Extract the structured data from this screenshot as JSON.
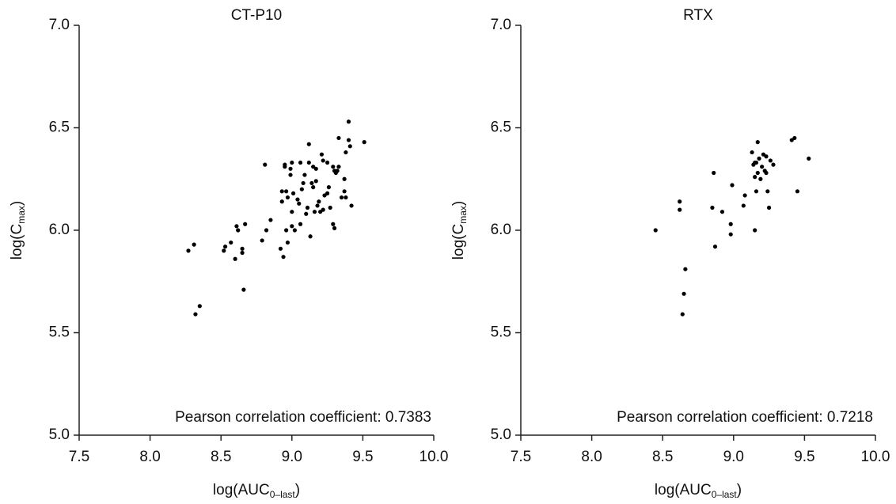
{
  "chart_data": [
    {
      "type": "scatter",
      "title": "CT-P10",
      "xlabel": [
        "log(AUC",
        "0–last",
        ")"
      ],
      "ylabel": [
        "log(C",
        "max",
        ")"
      ],
      "annotation": "Pearson correlation coefficient: 0.7383",
      "color": "#000000",
      "xlim": [
        7.5,
        10
      ],
      "ylim": [
        5,
        7
      ],
      "xticks": [
        7.5,
        {
          "value": 8,
          "label": "8.0"
        },
        8.5,
        {
          "value": 9,
          "label": "9.0"
        },
        9.5,
        {
          "value": 10,
          "label": "10.0"
        }
      ],
      "yticks": [
        {
          "value": 5,
          "label": "5.0"
        },
        5.5,
        {
          "value": 6,
          "label": "6.0"
        },
        6.5,
        {
          "value": 7,
          "label": "7.0"
        }
      ],
      "x": [
        8.27,
        8.31,
        8.32,
        8.35,
        8.52,
        8.53,
        8.57,
        8.6,
        8.61,
        8.62,
        8.65,
        8.65,
        8.66,
        8.67,
        8.81,
        8.79,
        8.82,
        8.85,
        8.92,
        8.93,
        8.93,
        8.94,
        8.95,
        8.95,
        8.96,
        8.96,
        8.97,
        8.97,
        8.99,
        9.0,
        8.99,
        9.0,
        9.01,
        9.02,
        9.0,
        9.04,
        9.05,
        9.06,
        9.07,
        9.06,
        9.09,
        9.1,
        9.12,
        9.12,
        9.13,
        9.14,
        9.15,
        9.15,
        9.16,
        9.17,
        9.18,
        9.19,
        9.2,
        9.21,
        9.22,
        9.22,
        9.23,
        9.25,
        9.25,
        9.26,
        9.27,
        9.29,
        9.29,
        9.3,
        9.3,
        9.31,
        9.33,
        9.33,
        9.35,
        9.37,
        9.37,
        9.38,
        9.4,
        9.4,
        9.41,
        9.42,
        9.51,
        9.38,
        9.32,
        9.17,
        9.08,
        9.11
      ],
      "values": [
        5.9,
        5.93,
        5.59,
        5.63,
        5.9,
        5.92,
        5.94,
        5.86,
        6.02,
        6.0,
        5.89,
        5.91,
        5.71,
        6.03,
        6.32,
        5.95,
        6.0,
        6.05,
        5.91,
        6.19,
        6.14,
        5.87,
        6.31,
        6.32,
        6.19,
        6.0,
        6.16,
        5.94,
        6.3,
        6.33,
        6.27,
        6.02,
        6.18,
        6.0,
        6.09,
        6.15,
        6.13,
        6.33,
        6.2,
        6.03,
        6.27,
        6.08,
        6.42,
        6.33,
        5.97,
        6.23,
        6.21,
        6.31,
        6.09,
        6.3,
        6.12,
        6.14,
        6.09,
        6.37,
        6.1,
        6.34,
        6.17,
        6.33,
        6.18,
        6.21,
        6.11,
        6.03,
        6.31,
        6.01,
        6.29,
        6.28,
        6.45,
        6.31,
        6.16,
        6.19,
        6.25,
        6.38,
        6.44,
        6.53,
        6.41,
        6.12,
        6.43,
        6.16,
        6.29,
        6.24,
        6.23,
        6.11
      ]
    },
    {
      "type": "scatter",
      "title": "RTX",
      "xlabel": [
        "log(AUC",
        "0–last",
        ")"
      ],
      "ylabel": [
        "log(C",
        "max",
        ")"
      ],
      "annotation": "Pearson correlation coefficient: 0.7218",
      "color": "#000000",
      "xlim": [
        7.5,
        10
      ],
      "ylim": [
        5,
        7
      ],
      "xticks": [
        7.5,
        {
          "value": 8,
          "label": "8.0"
        },
        8.5,
        {
          "value": 9,
          "label": "9.0"
        },
        9.5,
        {
          "value": 10,
          "label": "10.0"
        }
      ],
      "yticks": [
        {
          "value": 5,
          "label": "5.0"
        },
        5.5,
        {
          "value": 6,
          "label": "6.0"
        },
        6.5,
        {
          "value": 7,
          "label": "7.0"
        }
      ],
      "x": [
        8.45,
        8.62,
        8.62,
        8.64,
        8.65,
        8.66,
        8.85,
        8.86,
        8.87,
        8.92,
        8.98,
        8.98,
        8.99,
        9.07,
        9.08,
        9.13,
        9.14,
        9.15,
        9.15,
        9.16,
        9.16,
        9.17,
        9.17,
        9.18,
        9.19,
        9.2,
        9.21,
        9.22,
        9.23,
        9.24,
        9.25,
        9.26,
        9.28,
        9.41,
        9.43,
        9.45,
        9.53,
        9.23,
        9.15
      ],
      "values": [
        6.0,
        6.14,
        6.1,
        5.59,
        5.69,
        5.81,
        6.11,
        6.28,
        5.92,
        6.09,
        6.03,
        5.98,
        6.22,
        6.12,
        6.17,
        6.38,
        6.32,
        6.0,
        6.26,
        6.33,
        6.19,
        6.43,
        6.28,
        6.35,
        6.25,
        6.31,
        6.37,
        6.29,
        6.28,
        6.19,
        6.11,
        6.34,
        6.32,
        6.44,
        6.45,
        6.19,
        6.35,
        6.36,
        6.33
      ]
    }
  ]
}
